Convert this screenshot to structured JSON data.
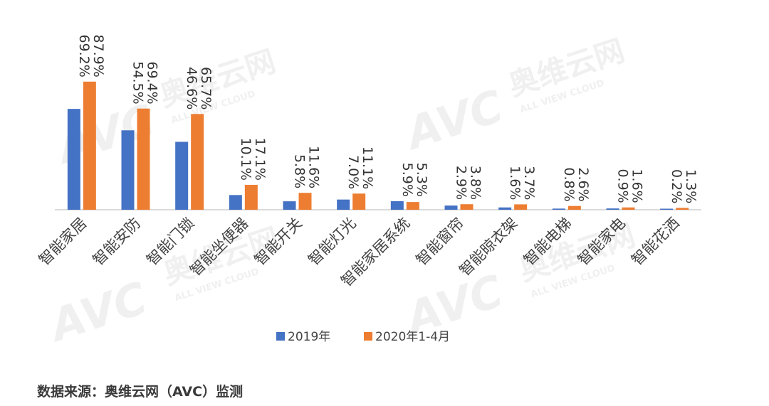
{
  "chart_data": {
    "type": "bar",
    "categories": [
      "智能家居",
      "智能安防",
      "智能门锁",
      "智能坐便器",
      "智能开关",
      "智能灯光",
      "智能家居系统",
      "智能窗帘",
      "智能晾衣架",
      "智能电梯",
      "智能家电",
      "智能花洒"
    ],
    "series": [
      {
        "name": "2019年",
        "values": [
          69.2,
          54.5,
          46.6,
          10.1,
          5.8,
          7.0,
          5.9,
          2.9,
          1.6,
          0.8,
          0.9,
          0.2
        ],
        "labels": [
          "69.2%",
          "54.5%",
          "46.6%",
          "10.1%",
          "5.8%",
          "7.0%",
          "5.9%",
          "2.9%",
          "1.6%",
          "0.8%",
          "0.9%",
          "0.2%"
        ],
        "color": "#4472C4"
      },
      {
        "name": "2020年1-4月",
        "values": [
          87.9,
          69.4,
          65.7,
          17.1,
          11.6,
          11.1,
          5.3,
          3.8,
          3.7,
          2.6,
          1.6,
          1.3
        ],
        "labels": [
          "87.9%",
          "69.4%",
          "65.7%",
          "17.1%",
          "11.6%",
          "11.1%",
          "5.3%",
          "3.8%",
          "3.7%",
          "2.6%",
          "1.6%",
          "1.3%"
        ],
        "color": "#ED7D31"
      }
    ],
    "ylim": [
      0,
      100
    ],
    "unit": "%",
    "grid": false,
    "legend": "bottom",
    "title": "",
    "xlabel": "",
    "ylabel": ""
  },
  "watermark": {
    "logo_text": "AVC",
    "brand_cn": "奥维云网",
    "brand_en": "ALL VIEW CLOUD"
  },
  "footer": {
    "source": "数据来源：奥维云网（AVC）监测"
  }
}
